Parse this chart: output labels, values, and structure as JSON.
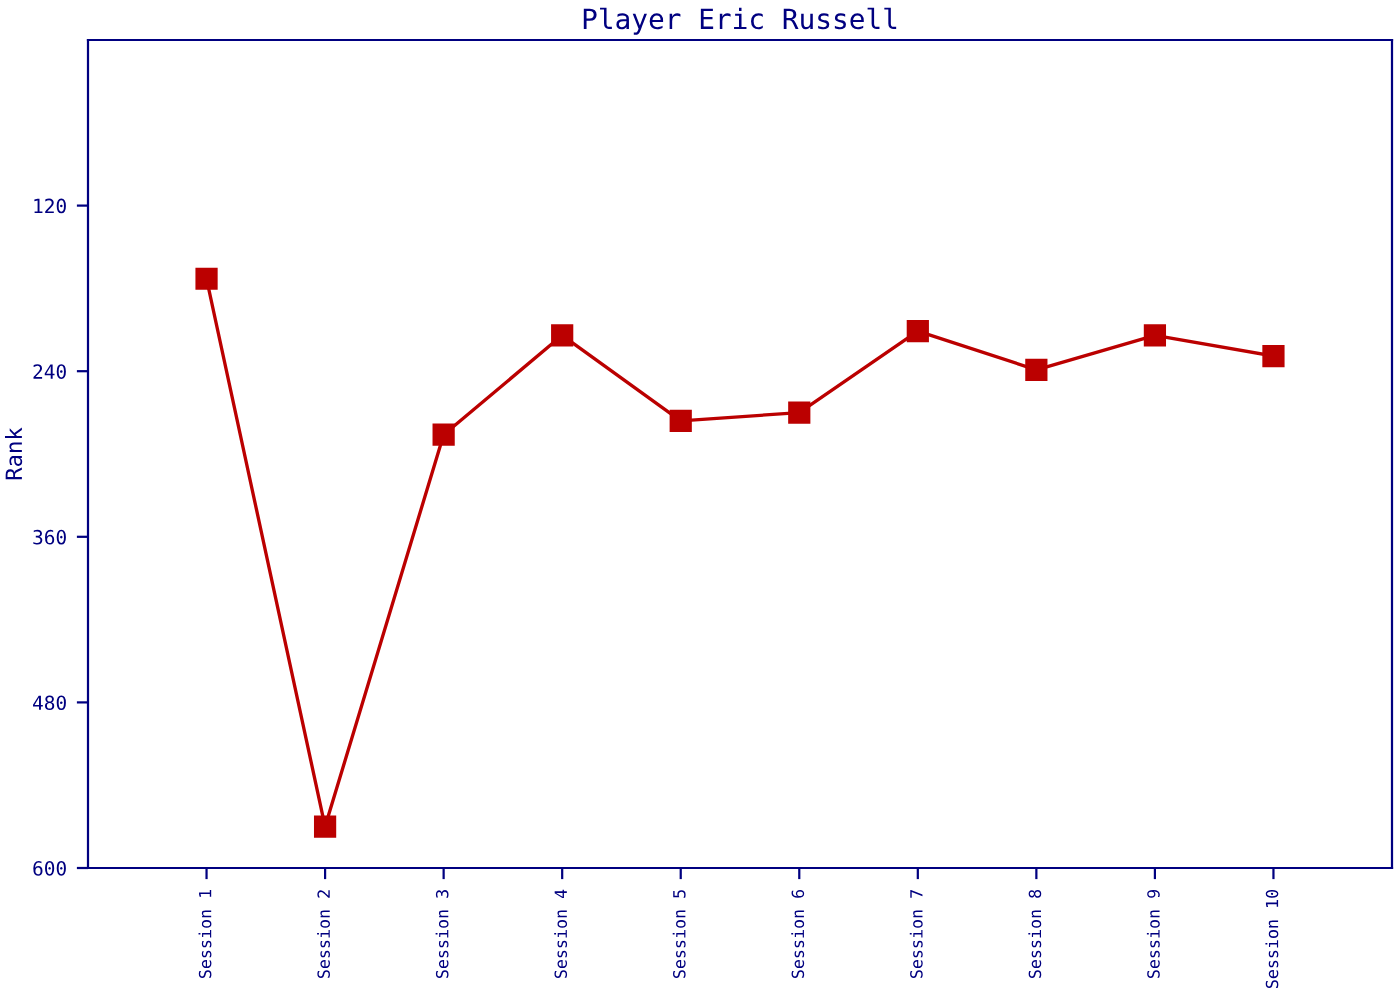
{
  "chart_data": {
    "type": "line",
    "title": "Player Eric Russell",
    "ylabel": "Rank",
    "categories": [
      "Session 1",
      "Session 2",
      "Session 3",
      "Session 4",
      "Session 5",
      "Session 6",
      "Session 7",
      "Session 8",
      "Session 9",
      "Session 10"
    ],
    "series": [
      {
        "color": "#bb0000",
        "values": [
          173,
          570,
          286,
          214,
          276,
          270,
          211,
          239,
          214,
          229
        ]
      }
    ],
    "ylim": [
      600,
      0
    ],
    "yticks": [
      120,
      240,
      360,
      480,
      600
    ],
    "grid": false,
    "legend": false,
    "marker": "square",
    "line_style": "solid"
  }
}
